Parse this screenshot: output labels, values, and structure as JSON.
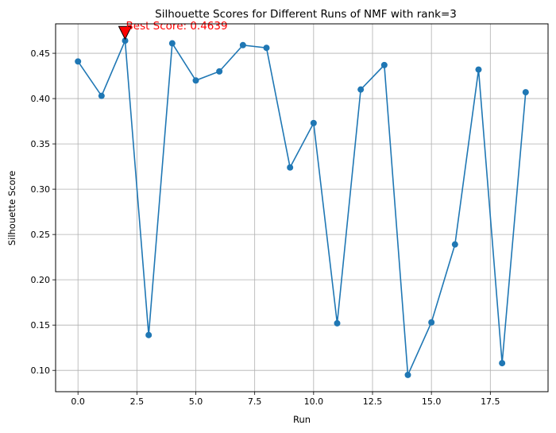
{
  "chart_data": {
    "type": "line",
    "title": "Silhouette Scores for Different Runs of NMF with rank=3",
    "xlabel": "Run",
    "ylabel": "Silhouette Score",
    "xlim": [
      -0.95,
      19.95
    ],
    "ylim": [
      0.0765,
      0.4825
    ],
    "grid": true,
    "series_color": "#1f77b4",
    "x": [
      0,
      1,
      2,
      3,
      4,
      5,
      6,
      7,
      8,
      9,
      10,
      11,
      12,
      13,
      14,
      15,
      16,
      17,
      18,
      19
    ],
    "values": [
      0.441,
      0.403,
      0.4639,
      0.139,
      0.461,
      0.42,
      0.43,
      0.459,
      0.456,
      0.324,
      0.373,
      0.152,
      0.41,
      0.437,
      0.095,
      0.153,
      0.239,
      0.432,
      0.108,
      0.407
    ],
    "xticks": [
      0.0,
      2.5,
      5.0,
      7.5,
      10.0,
      12.5,
      15.0,
      17.5
    ],
    "xtick_labels": [
      "0.0",
      "2.5",
      "5.0",
      "7.5",
      "10.0",
      "12.5",
      "15.0",
      "17.5"
    ],
    "yticks": [
      0.1,
      0.15,
      0.2,
      0.25,
      0.3,
      0.35,
      0.4,
      0.45
    ],
    "ytick_labels": [
      "0.10",
      "0.15",
      "0.20",
      "0.25",
      "0.30",
      "0.35",
      "0.40",
      "0.45"
    ],
    "annotation": {
      "text": "Best Score: 0.4639",
      "x": 2,
      "y": 0.4639,
      "color": "#ff0000",
      "marker_color": "#ff0000"
    }
  }
}
